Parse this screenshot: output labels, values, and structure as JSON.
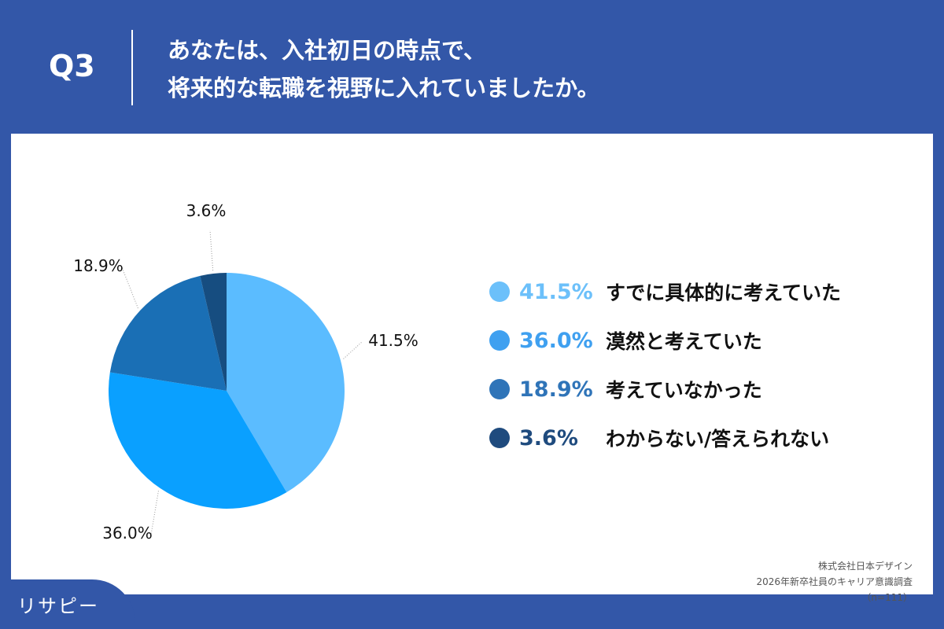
{
  "header": {
    "q": "Q3",
    "title_line1": "あなたは、入社初日の時点で、",
    "title_line2": "将来的な転職を視野に入れていましたか。"
  },
  "chart_data": {
    "type": "pie",
    "categories": [
      "すでに具体的に考えていた",
      "漠然と考えていた",
      "考えていなかった",
      "わからない/答えられない"
    ],
    "values": [
      41.5,
      36.0,
      18.9,
      3.6
    ],
    "labels": [
      "41.5%",
      "36.0%",
      "18.9%",
      "3.6%"
    ],
    "colors": [
      "#5bbcff",
      "#0aa0ff",
      "#1a6fb5",
      "#164d80"
    ],
    "legend_colors": [
      "#6cc0fa",
      "#3fa0f0",
      "#2f74b8",
      "#1f4b7e"
    ],
    "legend": "right"
  },
  "source": {
    "company": "株式会社日本デザイン",
    "survey": "2026年新卒社員のキャリア意識調査",
    "n": "（n=111）"
  },
  "logo": "リサピー"
}
